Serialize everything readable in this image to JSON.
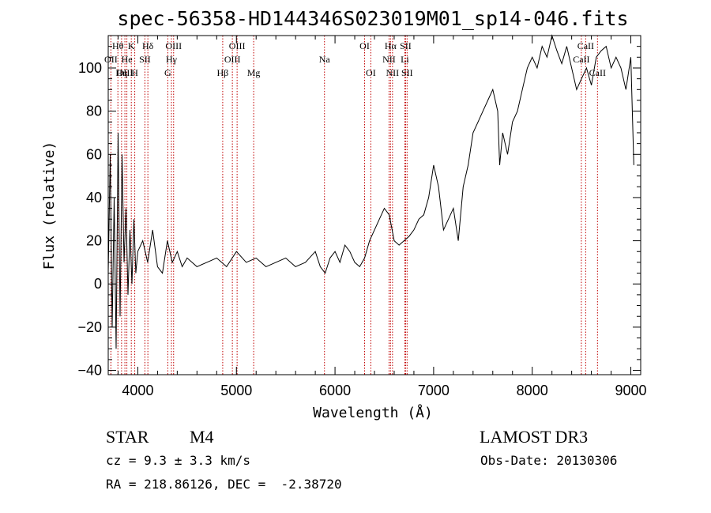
{
  "chart_data": {
    "type": "line",
    "title": "spec-56358-HD144346S023019M01_sp14-046.fits",
    "xlabel": "Wavelength (Å)",
    "ylabel": "Flux (relative)",
    "xlim": [
      3700,
      9100
    ],
    "ylim": [
      -42,
      115
    ],
    "xticks": [
      4000,
      5000,
      6000,
      7000,
      8000,
      9000
    ],
    "yticks": [
      -40,
      -20,
      0,
      20,
      40,
      60,
      80,
      100
    ],
    "grid": false,
    "series": [
      {
        "x": [
          3700,
          3720,
          3740,
          3760,
          3780,
          3800,
          3820,
          3840,
          3860,
          3880,
          3900,
          3920,
          3940,
          3960,
          3980,
          4000,
          4050,
          4100,
          4150,
          4200,
          4250,
          4300,
          4350,
          4400,
          4450,
          4500,
          4600,
          4700,
          4800,
          4900,
          5000,
          5100,
          5200,
          5300,
          5400,
          5500,
          5600,
          5700,
          5800,
          5850,
          5900,
          5950,
          6000,
          6050,
          6100,
          6150,
          6200,
          6250,
          6300,
          6350,
          6400,
          6450,
          6500,
          6550,
          6600,
          6650,
          6700,
          6750,
          6800,
          6850,
          6900,
          6950,
          7000,
          7050,
          7100,
          7150,
          7200,
          7250,
          7300,
          7350,
          7400,
          7450,
          7500,
          7550,
          7600,
          7650,
          7670,
          7700,
          7750,
          7800,
          7850,
          7900,
          7950,
          8000,
          8050,
          8100,
          8150,
          8200,
          8250,
          8300,
          8350,
          8400,
          8450,
          8500,
          8550,
          8600,
          8650,
          8700,
          8750,
          8800,
          8850,
          8900,
          8950,
          9000,
          9030
        ],
        "y": [
          5,
          60,
          -20,
          40,
          -30,
          70,
          -15,
          60,
          10,
          35,
          -5,
          25,
          0,
          30,
          5,
          15,
          20,
          10,
          25,
          8,
          5,
          20,
          10,
          15,
          8,
          12,
          8,
          10,
          12,
          8,
          15,
          10,
          12,
          8,
          10,
          12,
          8,
          10,
          15,
          8,
          5,
          12,
          15,
          10,
          18,
          15,
          10,
          8,
          12,
          20,
          25,
          30,
          35,
          32,
          20,
          18,
          20,
          22,
          25,
          30,
          32,
          40,
          55,
          45,
          25,
          30,
          35,
          20,
          45,
          55,
          70,
          75,
          80,
          85,
          90,
          80,
          55,
          70,
          60,
          75,
          80,
          90,
          100,
          105,
          100,
          110,
          105,
          115,
          108,
          102,
          110,
          100,
          90,
          95,
          100,
          92,
          105,
          108,
          110,
          100,
          105,
          100,
          90,
          105,
          55
        ]
      }
    ],
    "spectral_lines": [
      {
        "name": "Hθ",
        "wavelength": 3798,
        "row": 0
      },
      {
        "name": "OII",
        "wavelength": 3727,
        "row": 1
      },
      {
        "name": "OIII",
        "wavelength": 3869,
        "row": 2
      },
      {
        "name": "K",
        "wavelength": 3934,
        "row": 0
      },
      {
        "name": "He",
        "wavelength": 3889,
        "row": 1
      },
      {
        "name": "Hη",
        "wavelength": 3835,
        "row": 2
      },
      {
        "name": "H",
        "wavelength": 3969,
        "row": 2
      },
      {
        "name": "SII",
        "wavelength": 4072,
        "row": 1
      },
      {
        "name": "Hδ",
        "wavelength": 4102,
        "row": 0
      },
      {
        "name": "OIII",
        "wavelength": 4363,
        "row": 0
      },
      {
        "name": "Hγ",
        "wavelength": 4341,
        "row": 1
      },
      {
        "name": "G",
        "wavelength": 4304,
        "row": 2
      },
      {
        "name": "Hβ",
        "wavelength": 4861,
        "row": 2
      },
      {
        "name": "OIII",
        "wavelength": 5007,
        "row": 0
      },
      {
        "name": "OIII",
        "wavelength": 4959,
        "row": 1
      },
      {
        "name": "Mg",
        "wavelength": 5175,
        "row": 2
      },
      {
        "name": "Na",
        "wavelength": 5893,
        "row": 1
      },
      {
        "name": "OI",
        "wavelength": 6300,
        "row": 0
      },
      {
        "name": "OI",
        "wavelength": 6363,
        "row": 2
      },
      {
        "name": "Hα",
        "wavelength": 6563,
        "row": 0
      },
      {
        "name": "SII",
        "wavelength": 6716,
        "row": 0
      },
      {
        "name": "NII",
        "wavelength": 6548,
        "row": 1
      },
      {
        "name": "Li",
        "wavelength": 6708,
        "row": 1
      },
      {
        "name": "NII",
        "wavelength": 6583,
        "row": 2
      },
      {
        "name": "SII",
        "wavelength": 6731,
        "row": 2
      },
      {
        "name": "CaII",
        "wavelength": 8542,
        "row": 0
      },
      {
        "name": "CaII",
        "wavelength": 8498,
        "row": 1
      },
      {
        "name": "CaII",
        "wavelength": 8662,
        "row": 2
      }
    ]
  },
  "info": {
    "object_class": "STAR",
    "subclass": "M4",
    "survey": "LAMOST DR3",
    "cz": "cz = 9.3 ± 3.3 km/s",
    "obs_date": "Obs-Date: 20130306",
    "coords": "RA = 218.86126, DEC =  -2.38720"
  },
  "colors": {
    "spectrum": "#000000",
    "line_marker": "#c00000"
  }
}
